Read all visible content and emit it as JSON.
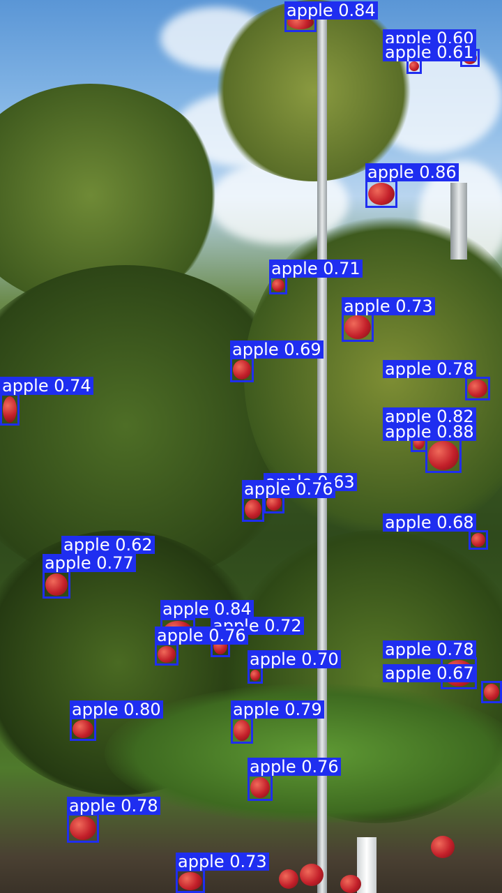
{
  "image": {
    "description_free": true,
    "colors": {
      "box": "#1f2ef0",
      "label_text": "#ffffff"
    }
  },
  "detections": [
    {
      "label": "apple",
      "score": "0.84"
    },
    {
      "label": "apple",
      "score": "0.60"
    },
    {
      "label": "apple",
      "score": "0.61"
    },
    {
      "label": "apple",
      "score": "0.86"
    },
    {
      "label": "apple",
      "score": "0.71"
    },
    {
      "label": "apple",
      "score": "0.73"
    },
    {
      "label": "apple",
      "score": "0.69"
    },
    {
      "label": "apple",
      "score": "0.78"
    },
    {
      "label": "apple",
      "score": "0.74"
    },
    {
      "label": "apple",
      "score": "0.82"
    },
    {
      "label": "apple",
      "score": "0.88"
    },
    {
      "label": "apple",
      "score": "0.63"
    },
    {
      "label": "apple",
      "score": "0.76"
    },
    {
      "label": "apple",
      "score": "0.68"
    },
    {
      "label": "apple",
      "score": "0.62"
    },
    {
      "label": "apple",
      "score": "0.77"
    },
    {
      "label": "apple",
      "score": "0.84"
    },
    {
      "label": "apple",
      "score": "0.72"
    },
    {
      "label": "apple",
      "score": "0.76"
    },
    {
      "label": "apple",
      "score": "0.70"
    },
    {
      "label": "apple",
      "score": "0.78"
    },
    {
      "label": "apple",
      "score": "0.67"
    },
    {
      "label": "apple",
      "score": "0.80"
    },
    {
      "label": "apple",
      "score": "0.79"
    },
    {
      "label": "apple",
      "score": "0.76"
    },
    {
      "label": "apple",
      "score": "0.78"
    },
    {
      "label": "apple",
      "score": "0.73"
    }
  ]
}
